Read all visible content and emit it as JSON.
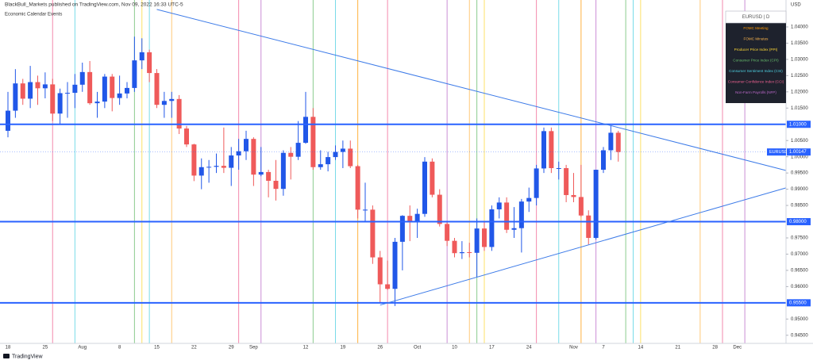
{
  "chart_data": {
    "type": "candlestick",
    "title": "BlackBull_Markets published on TradingView.com, Nov 09, 2022 16:33 UTC-5",
    "subtitle": "Economic Calendar Events",
    "currency": "USD",
    "brand": "TradingView",
    "legend_title": "EURUSD | D",
    "symbol": "EURUSD",
    "up_color": "#2157e8",
    "down_color": "#ef5a5a",
    "grid": false,
    "categories": [
      "18",
      null,
      null,
      null,
      null,
      "25",
      null,
      null,
      null,
      null,
      "Aug",
      null,
      null,
      null,
      null,
      "8",
      null,
      null,
      null,
      null,
      "15",
      null,
      null,
      null,
      null,
      "22",
      null,
      null,
      null,
      null,
      "29",
      null,
      null,
      "Sep",
      null,
      null,
      null,
      null,
      null,
      null,
      "12",
      null,
      null,
      null,
      null,
      "19",
      null,
      null,
      null,
      null,
      "26",
      null,
      null,
      null,
      null,
      "Oct",
      null,
      null,
      null,
      null,
      "10",
      null,
      null,
      null,
      null,
      "17",
      null,
      null,
      null,
      null,
      "24",
      null,
      null,
      null,
      null,
      null,
      "Nov",
      null,
      null,
      null,
      "7",
      null,
      null,
      null,
      null,
      "14",
      null,
      null,
      null,
      null,
      "21",
      null,
      null,
      null,
      null,
      "28",
      null,
      null,
      "Dec",
      null
    ],
    "open": [
      1.008,
      1.0142,
      1.0226,
      1.0179,
      1.023,
      1.0211,
      1.0223,
      1.0133,
      1.0196,
      1.0197,
      1.0222,
      1.0261,
      1.0165,
      1.017,
      1.0247,
      1.0181,
      1.0195,
      1.0212,
      1.0297,
      1.0322,
      1.0258,
      1.016,
      1.0172,
      1.0178,
      1.0087,
      1.0038,
      0.9942,
      0.9968,
      0.9969,
      0.9972,
      0.9966,
      1.0004,
      1.0017,
      1.0055,
      0.9945,
      0.9953,
      0.9926,
      0.9901,
      1.0012,
      1.0,
      1.0043,
      1.0123,
      0.9968,
      0.9977,
      0.9999,
      1.0015,
      1.0025,
      0.9971,
      0.9837,
      0.9837,
      0.969,
      0.9607,
      0.9593,
      0.9738,
      0.9818,
      0.9802,
      0.9824,
      0.9985,
      0.9883,
      0.9793,
      0.9741,
      0.9703,
      0.9706,
      0.9704,
      0.9779,
      0.9722,
      0.9838,
      0.9859,
      0.9775,
      0.978,
      0.9862,
      0.9873,
      0.9964,
      1.0079,
      0.9965,
      0.9965,
      0.9882,
      0.9876,
      0.9819,
      0.975,
      0.996,
      1.002,
      1.0074,
      null,
      null,
      null,
      null,
      null,
      null,
      null,
      null,
      null,
      null,
      null,
      null,
      null,
      null,
      null,
      null,
      null
    ],
    "high": [
      1.02,
      1.027,
      1.024,
      1.028,
      1.025,
      1.026,
      1.024,
      1.021,
      1.023,
      1.0255,
      1.029,
      1.0295,
      1.02,
      1.0255,
      1.0255,
      1.025,
      1.023,
      1.037,
      1.0365,
      1.033,
      1.027,
      1.02,
      1.02,
      1.019,
      1.0095,
      1.004,
      0.9995,
      0.999,
      1.001,
      1.009,
      1.003,
      1.0055,
      1.008,
      1.006,
      1.003,
      0.996,
      0.999,
      1.002,
      1.003,
      1.011,
      1.02,
      1.015,
      1.002,
      1.0015,
      1.0035,
      1.005,
      1.005,
      0.9975,
      0.992,
      0.985,
      0.971,
      0.968,
      0.975,
      0.982,
      0.985,
      0.984,
      0.9999,
      0.9995,
      0.99,
      0.98,
      0.975,
      0.974,
      0.9735,
      0.981,
      0.98,
      0.985,
      0.9875,
      0.9875,
      0.9845,
      0.987,
      0.9905,
      0.9975,
      1.009,
      1.009,
      0.9985,
      0.9975,
      0.995,
      0.9975,
      0.9835,
      0.996,
      1.003,
      1.0095,
      1.008,
      null,
      null,
      null,
      null,
      null,
      null,
      null,
      null,
      null,
      null,
      null,
      null,
      null,
      null,
      null,
      null,
      null
    ],
    "low": [
      1.006,
      1.012,
      1.016,
      1.015,
      1.016,
      1.018,
      1.011,
      1.01,
      1.012,
      1.015,
      1.02,
      1.016,
      1.012,
      1.015,
      1.014,
      1.016,
      1.018,
      1.02,
      1.027,
      1.023,
      1.015,
      1.012,
      1.012,
      1.007,
      1.003,
      0.9925,
      0.99,
      0.992,
      0.995,
      0.995,
      0.991,
      0.996,
      0.999,
      0.991,
      0.994,
      0.9875,
      0.9865,
      0.988,
      0.993,
      0.999,
      1.004,
      0.996,
      0.996,
      0.9955,
      0.999,
      0.9965,
      0.9965,
      0.981,
      0.98,
      0.967,
      0.955,
      0.959,
      0.954,
      0.965,
      0.974,
      0.975,
      0.9815,
      0.9875,
      0.9785,
      0.9725,
      0.969,
      0.9685,
      0.969,
      0.963,
      0.971,
      0.971,
      0.981,
      0.9765,
      0.975,
      0.9705,
      0.983,
      0.985,
      0.995,
      0.995,
      0.993,
      0.986,
      0.986,
      0.9815,
      0.973,
      0.9745,
      0.995,
      0.999,
      0.9985,
      null,
      null,
      null,
      null,
      null,
      null,
      null,
      null,
      null,
      null,
      null,
      null,
      null,
      null,
      null,
      null,
      null
    ],
    "close": [
      1.0142,
      1.0226,
      1.0179,
      1.023,
      1.0211,
      1.0223,
      1.0133,
      1.0196,
      1.0197,
      1.0222,
      1.0261,
      1.0165,
      1.017,
      1.0247,
      1.0181,
      1.0195,
      1.0212,
      1.0297,
      1.0322,
      1.0258,
      1.016,
      1.0172,
      1.0178,
      1.0087,
      1.0038,
      0.9942,
      0.9968,
      0.9969,
      0.9972,
      0.9966,
      1.0004,
      1.0017,
      1.0055,
      0.9945,
      0.9953,
      0.9926,
      0.9901,
      1.0012,
      1.0,
      1.0043,
      1.0123,
      0.9968,
      0.9977,
      0.9999,
      1.0015,
      1.0025,
      0.9971,
      0.9837,
      0.9837,
      0.969,
      0.9607,
      0.9593,
      0.9738,
      0.9818,
      0.9802,
      0.9824,
      0.9985,
      0.9883,
      0.9793,
      0.9741,
      0.9703,
      0.9706,
      0.9704,
      0.9779,
      0.9722,
      0.9838,
      0.9859,
      0.9775,
      0.978,
      0.9862,
      0.9873,
      0.9964,
      1.0079,
      0.9965,
      0.9965,
      0.9882,
      0.9876,
      0.9819,
      0.975,
      0.996,
      1.002,
      1.0074,
      1.00147,
      null,
      null,
      null,
      null,
      null,
      null,
      null,
      null,
      null,
      null,
      null,
      null,
      null,
      null,
      null,
      null,
      null
    ],
    "ylim": [
      0.9425,
      1.0483
    ],
    "yticks": [
      {
        "value": 1.04,
        "label": "1.04000"
      },
      {
        "value": 1.035,
        "label": "1.03500"
      },
      {
        "value": 1.03,
        "label": "1.03000"
      },
      {
        "value": 1.025,
        "label": "1.02500"
      },
      {
        "value": 1.02,
        "label": "1.02000"
      },
      {
        "value": 1.015,
        "label": "1.01500"
      },
      {
        "value": 1.005,
        "label": "1.00500"
      },
      {
        "value": 1.0,
        "label": "1.00000"
      },
      {
        "value": 0.995,
        "label": "0.99500"
      },
      {
        "value": 0.99,
        "label": "0.99000"
      },
      {
        "value": 0.985,
        "label": "0.98500"
      },
      {
        "value": 0.975,
        "label": "0.97500"
      },
      {
        "value": 0.97,
        "label": "0.97000"
      },
      {
        "value": 0.965,
        "label": "0.96500"
      },
      {
        "value": 0.96,
        "label": "0.96000"
      },
      {
        "value": 0.95,
        "label": "0.95000"
      },
      {
        "value": 0.945,
        "label": "0.94500"
      }
    ],
    "levels": [
      {
        "value": 1.01,
        "label": "1.01000"
      },
      {
        "value": 0.98,
        "label": "0.98000"
      },
      {
        "value": 0.955,
        "label": "0.95500"
      }
    ],
    "trendlines": [
      {
        "x": [
          20,
          104.5
        ],
        "y": [
          1.0454,
          0.9958
        ]
      },
      {
        "x": [
          50,
          104.5
        ],
        "y": [
          0.9543,
          0.9904
        ]
      }
    ],
    "events": [
      {
        "name": "FOMC Meeting",
        "color": "#ff9800",
        "x": [
          47,
          77
        ]
      },
      {
        "name": "FOMC Minutes",
        "color": "#ffb74d",
        "x": [
          22,
          62,
          93
        ]
      },
      {
        "name": "Producer Price Index (PPI)",
        "color": "#fdd835",
        "x": [
          18,
          64,
          85
        ]
      },
      {
        "name": "Consumer Price Index (CPI)",
        "color": "#66bb6a",
        "x": [
          17,
          41,
          63,
          83
        ]
      },
      {
        "name": "Consumer Sentiment Index (CSI)",
        "color": "#4dd0e1",
        "x": [
          9,
          19,
          44,
          74,
          84
        ]
      },
      {
        "name": "Consumer Confidence Index (CCI)",
        "color": "#f06292",
        "x": [
          6,
          31,
          51,
          71,
          96
        ]
      },
      {
        "name": "Non-Farm Payrolls (NFP)",
        "color": "#ba68c8",
        "x": [
          34,
          59,
          79,
          99
        ]
      }
    ]
  }
}
